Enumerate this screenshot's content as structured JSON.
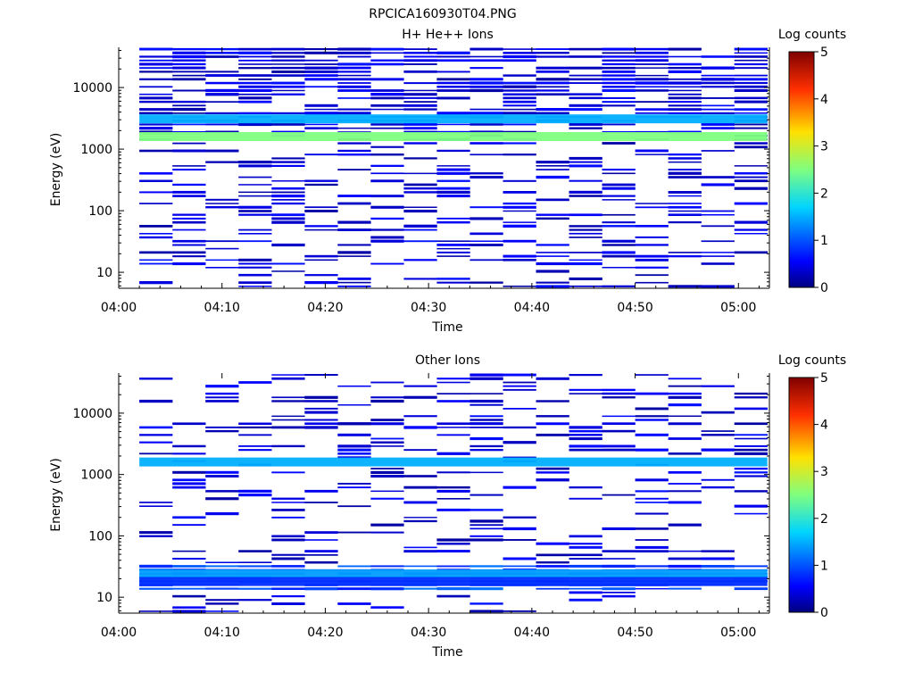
{
  "figure_title": "RPCICA160930T04.PNG",
  "chart_data": [
    {
      "type": "heatmap",
      "title": "H+ He++ Ions",
      "xlabel": "Time",
      "ylabel": "Energy (eV)",
      "y_scale": "log",
      "ylim": [
        5.5,
        45000
      ],
      "x_range_minutes": [
        0,
        63
      ],
      "x_tick_labels": [
        "04:00",
        "04:10",
        "04:20",
        "04:30",
        "04:40",
        "04:50",
        "05:00"
      ],
      "y_tick_labels": [
        "10",
        "100",
        "1000",
        "10000"
      ],
      "colorbar": {
        "label": "Log counts",
        "range": [
          0,
          5
        ],
        "tick_labels": [
          "0",
          "1",
          "2",
          "3",
          "4",
          "5"
        ]
      },
      "grid": false,
      "time_bin_starts_minutes": [
        2,
        5.2,
        8.4,
        11.6,
        14.8,
        18,
        21.2,
        24.4,
        27.6,
        30.8,
        34,
        37.2,
        40.4,
        43.6,
        46.8,
        50,
        53.2,
        56.4,
        59.6
      ],
      "notable_bands": [
        {
          "energy_eV": 1600,
          "log_counts": 2.5,
          "extent": "all times"
        },
        {
          "energy_eV": 3100,
          "log_counts": 1.5,
          "extent": "all times"
        }
      ],
      "background_level_log_counts": 0.3
    },
    {
      "type": "heatmap",
      "title": "Other Ions",
      "xlabel": "Time",
      "ylabel": "Energy (eV)",
      "y_scale": "log",
      "ylim": [
        5.5,
        45000
      ],
      "x_range_minutes": [
        0,
        63
      ],
      "x_tick_labels": [
        "04:00",
        "04:10",
        "04:20",
        "04:30",
        "04:40",
        "04:50",
        "05:00"
      ],
      "y_tick_labels": [
        "10",
        "100",
        "1000",
        "10000"
      ],
      "colorbar": {
        "label": "Log counts",
        "range": [
          0,
          5
        ],
        "tick_labels": [
          "0",
          "1",
          "2",
          "3",
          "4",
          "5"
        ]
      },
      "grid": false,
      "time_bin_starts_minutes": [
        2,
        5.2,
        8.4,
        11.6,
        14.8,
        18,
        21.2,
        24.4,
        27.6,
        30.8,
        34,
        37.2,
        40.4,
        43.6,
        46.8,
        50,
        53.2,
        56.4,
        59.6
      ],
      "notable_bands": [
        {
          "energy_eV": 1600,
          "log_counts": 1.5,
          "extent": "all times"
        },
        {
          "energy_eV": 24,
          "log_counts": 1.4,
          "extent": "all times"
        },
        {
          "energy_eV": 18,
          "log_counts": 0.8,
          "extent": "all times"
        }
      ],
      "background_level_log_counts": 0.3
    }
  ]
}
